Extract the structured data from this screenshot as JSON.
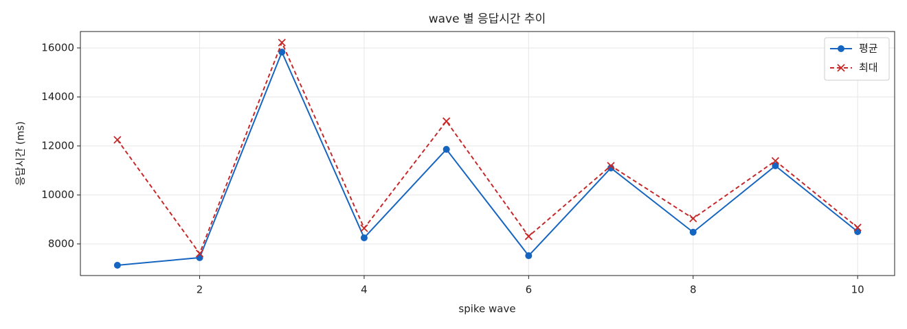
{
  "chart_data": {
    "type": "line",
    "title": "wave 별 응답시간 추이",
    "x_label": "spike wave",
    "y_label": "응답시간 (ms)",
    "x": [
      1,
      2,
      3,
      4,
      5,
      6,
      7,
      8,
      9,
      10
    ],
    "series": [
      {
        "name": "평균",
        "color": "#1565c0",
        "marker": "o",
        "linestyle": "solid",
        "values": [
          7130,
          7440,
          15830,
          8250,
          11860,
          7520,
          11100,
          8480,
          11190,
          8500
        ]
      },
      {
        "name": "최대",
        "color": "#c62828",
        "marker": "x",
        "linestyle": "dashed",
        "values": [
          12250,
          7610,
          16220,
          8640,
          13010,
          8310,
          11190,
          9040,
          11390,
          8670
        ]
      }
    ],
    "xlim": [
      0.55,
      10.45
    ],
    "xticks": [
      2,
      4,
      6,
      8,
      10
    ],
    "ylim": [
      6710,
      16670
    ],
    "yticks": [
      8000,
      10000,
      12000,
      14000,
      16000
    ],
    "grid": true,
    "legend": "upper right"
  }
}
